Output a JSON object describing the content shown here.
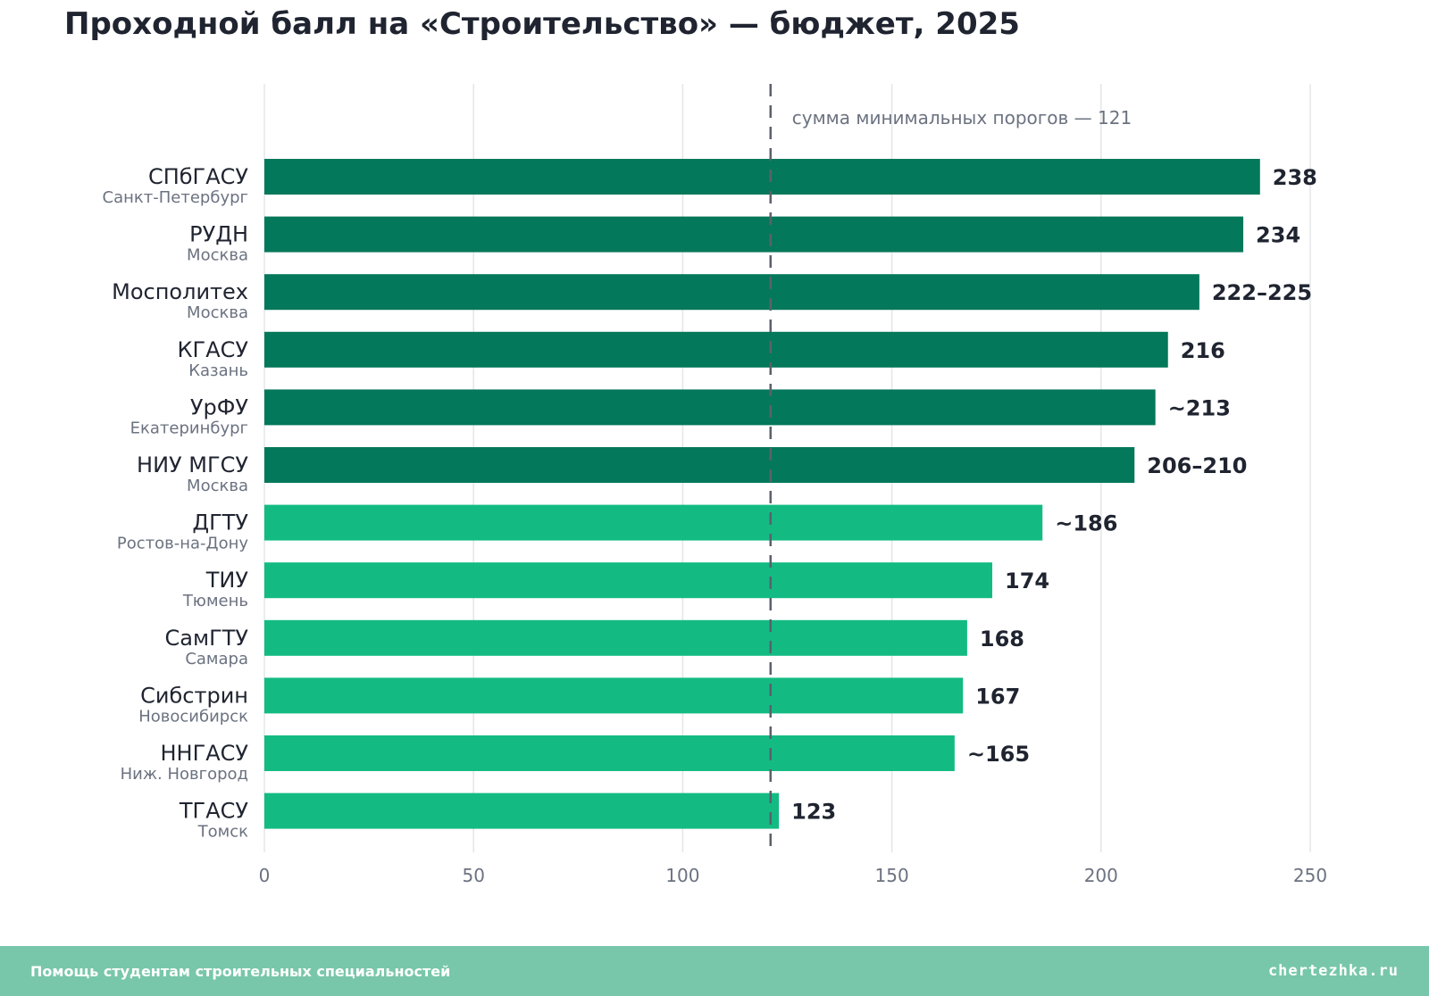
{
  "chart_data": {
    "type": "bar",
    "orientation": "horizontal",
    "title": "Проходной балл на «Строительство» — бюджет, 2025",
    "xlim": [
      0,
      250
    ],
    "xticks": [
      0,
      50,
      100,
      150,
      200,
      250
    ],
    "grid": true,
    "reference_line": {
      "value": 121,
      "label": "сумма минимальных порогов — 121"
    },
    "colors": {
      "top": "#04785a",
      "rest": "#13bb83"
    },
    "bars": [
      {
        "name": "СПбГАСУ",
        "city": "Санкт-Петербург",
        "value": 238,
        "label": "238",
        "group": "top"
      },
      {
        "name": "РУДН",
        "city": "Москва",
        "value": 234,
        "label": "234",
        "group": "top"
      },
      {
        "name": "Мосполитех",
        "city": "Москва",
        "value": 223.5,
        "label": "222–225",
        "group": "top"
      },
      {
        "name": "КГАСУ",
        "city": "Казань",
        "value": 216,
        "label": "216",
        "group": "top"
      },
      {
        "name": "УрФУ",
        "city": "Екатеринбург",
        "value": 213,
        "label": "~213",
        "group": "top"
      },
      {
        "name": "НИУ МГСУ",
        "city": "Москва",
        "value": 208,
        "label": "206–210",
        "group": "top"
      },
      {
        "name": "ДГТУ",
        "city": "Ростов-на-Дону",
        "value": 186,
        "label": "~186",
        "group": "rest"
      },
      {
        "name": "ТИУ",
        "city": "Тюмень",
        "value": 174,
        "label": "174",
        "group": "rest"
      },
      {
        "name": "СамГТУ",
        "city": "Самара",
        "value": 168,
        "label": "168",
        "group": "rest"
      },
      {
        "name": "Сибстрин",
        "city": "Новосибирск",
        "value": 167,
        "label": "167",
        "group": "rest"
      },
      {
        "name": "ННГАСУ",
        "city": "Ниж. Новгород",
        "value": 165,
        "label": "~165",
        "group": "rest"
      },
      {
        "name": "ТГАСУ",
        "city": "Томск",
        "value": 123,
        "label": "123",
        "group": "rest"
      }
    ]
  },
  "footer": {
    "left": "Помощь студентам строительных специальностей",
    "right": "chertezhka.ru"
  }
}
